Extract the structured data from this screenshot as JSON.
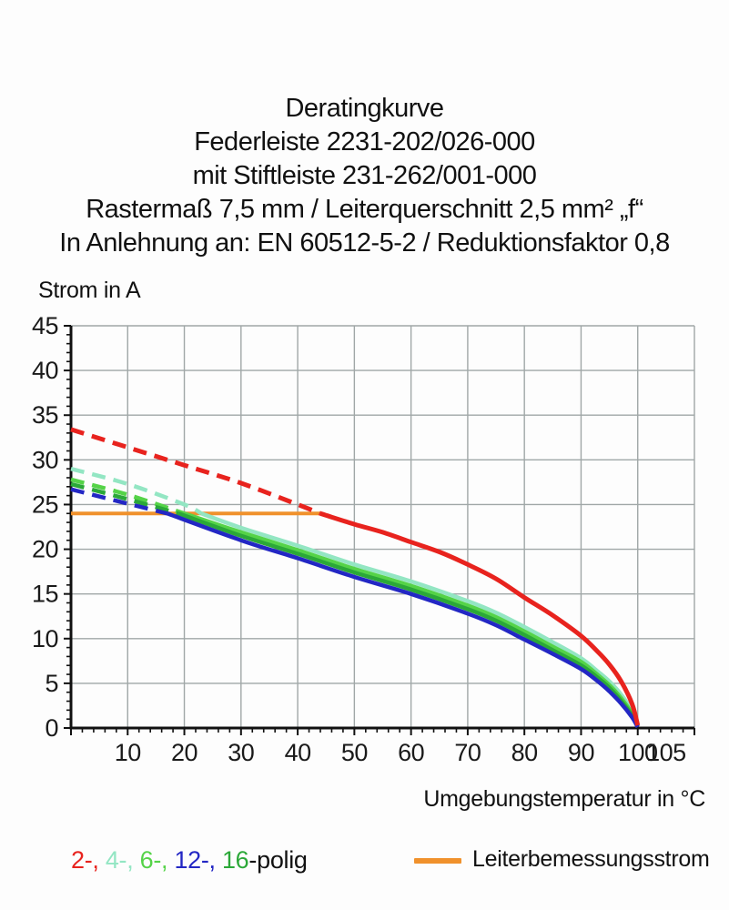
{
  "page": {
    "background": "#fdfdfd",
    "text_color": "#1a1a1a"
  },
  "title": {
    "lines": [
      "Deratingkurve",
      "Federleiste 2231-202/026-000",
      "mit Stiftleiste 231-262/001-000",
      "Rastermaß 7,5 mm / Leiterquerschnitt 2,5 mm² „f“",
      "In Anlehnung an: EN 60512-5-2 / Reduktionsfaktor 0,8"
    ]
  },
  "chart_data": {
    "type": "line",
    "title": "Deratingkurve",
    "xlabel": "Umgebungstemperatur in °C",
    "ylabel": "Strom in A",
    "xlim": [
      0,
      110
    ],
    "ylim": [
      0,
      45
    ],
    "grid": true,
    "grid_color": "#a0a7a7",
    "axis_color": "#111111",
    "x_gridlines": [
      10,
      20,
      30,
      40,
      50,
      60,
      70,
      80,
      90,
      100
    ],
    "x_minor_step": 2,
    "y_minor_step": 1,
    "x_tick_labels": [
      {
        "value": 10,
        "label": "10"
      },
      {
        "value": 20,
        "label": "20"
      },
      {
        "value": 30,
        "label": "30"
      },
      {
        "value": 40,
        "label": "40"
      },
      {
        "value": 50,
        "label": "50"
      },
      {
        "value": 60,
        "label": "60"
      },
      {
        "value": 70,
        "label": "70"
      },
      {
        "value": 80,
        "label": "80"
      },
      {
        "value": 90,
        "label": "90"
      },
      {
        "value": 100,
        "label": "100"
      },
      {
        "value": 105,
        "label": "105"
      }
    ],
    "y_tick_labels": [
      {
        "value": 0,
        "label": "0"
      },
      {
        "value": 5,
        "label": "5"
      },
      {
        "value": 10,
        "label": "10"
      },
      {
        "value": 15,
        "label": "15"
      },
      {
        "value": 20,
        "label": "20"
      },
      {
        "value": 25,
        "label": "25"
      },
      {
        "value": 30,
        "label": "30"
      },
      {
        "value": 35,
        "label": "35"
      },
      {
        "value": 40,
        "label": "40"
      },
      {
        "value": 45,
        "label": "45"
      }
    ],
    "y_gridline_step": 5,
    "series": [
      {
        "name": "4-polig",
        "color": "#93e6c3",
        "width": 4.5,
        "dash_until": 23,
        "points": [
          [
            0,
            29.0
          ],
          [
            10,
            27.3
          ],
          [
            20,
            25.0
          ],
          [
            23,
            24.0
          ],
          [
            30,
            22.4
          ],
          [
            40,
            20.4
          ],
          [
            50,
            18.3
          ],
          [
            60,
            16.4
          ],
          [
            70,
            14.2
          ],
          [
            75,
            12.9
          ],
          [
            80,
            11.3
          ],
          [
            85,
            9.6
          ],
          [
            90,
            7.8
          ],
          [
            93,
            6.3
          ],
          [
            95,
            5.2
          ],
          [
            97,
            3.8
          ],
          [
            99,
            1.9
          ],
          [
            100,
            0.3
          ]
        ]
      },
      {
        "name": "6-polig",
        "color": "#55d348",
        "width": 4.5,
        "dash_until": 20,
        "points": [
          [
            0,
            27.8
          ],
          [
            10,
            26.1
          ],
          [
            20,
            24.0
          ],
          [
            30,
            21.9
          ],
          [
            40,
            19.9
          ],
          [
            50,
            17.8
          ],
          [
            60,
            15.9
          ],
          [
            70,
            13.7
          ],
          [
            75,
            12.4
          ],
          [
            80,
            10.8
          ],
          [
            85,
            9.1
          ],
          [
            90,
            7.4
          ],
          [
            93,
            5.9
          ],
          [
            95,
            4.8
          ],
          [
            97,
            3.4
          ],
          [
            99,
            1.6
          ],
          [
            100,
            0.2
          ]
        ]
      },
      {
        "name": "16-polig",
        "color": "#2ba838",
        "width": 4.5,
        "dash_until": 19,
        "points": [
          [
            0,
            27.3
          ],
          [
            10,
            25.6
          ],
          [
            19,
            24.0
          ],
          [
            30,
            21.5
          ],
          [
            40,
            19.5
          ],
          [
            50,
            17.4
          ],
          [
            60,
            15.5
          ],
          [
            70,
            13.3
          ],
          [
            75,
            12.0
          ],
          [
            80,
            10.4
          ],
          [
            85,
            8.7
          ],
          [
            90,
            7.0
          ],
          [
            93,
            5.6
          ],
          [
            95,
            4.5
          ],
          [
            97,
            3.1
          ],
          [
            99,
            1.4
          ],
          [
            100,
            0.2
          ]
        ]
      },
      {
        "name": "12-polig",
        "color": "#2327c4",
        "width": 4.5,
        "dash_until": 17,
        "points": [
          [
            0,
            26.7
          ],
          [
            10,
            25.1
          ],
          [
            17,
            24.0
          ],
          [
            30,
            21.0
          ],
          [
            40,
            19.0
          ],
          [
            50,
            16.9
          ],
          [
            60,
            15.0
          ],
          [
            70,
            12.8
          ],
          [
            75,
            11.5
          ],
          [
            80,
            9.9
          ],
          [
            85,
            8.3
          ],
          [
            90,
            6.6
          ],
          [
            93,
            5.2
          ],
          [
            95,
            4.1
          ],
          [
            97,
            2.8
          ],
          [
            99,
            1.2
          ],
          [
            100,
            0.1
          ]
        ]
      },
      {
        "name": "2-polig",
        "color": "#e8231e",
        "width": 5,
        "dash_until": 44,
        "points": [
          [
            0,
            33.4
          ],
          [
            10,
            31.4
          ],
          [
            20,
            29.4
          ],
          [
            30,
            27.4
          ],
          [
            40,
            25.0
          ],
          [
            44,
            24.0
          ],
          [
            50,
            22.8
          ],
          [
            55,
            21.9
          ],
          [
            60,
            20.8
          ],
          [
            65,
            19.7
          ],
          [
            70,
            18.3
          ],
          [
            75,
            16.7
          ],
          [
            80,
            14.6
          ],
          [
            85,
            12.6
          ],
          [
            90,
            10.3
          ],
          [
            93,
            8.5
          ],
          [
            95,
            7.1
          ],
          [
            97,
            5.3
          ],
          [
            99,
            2.7
          ],
          [
            100,
            0.3
          ]
        ]
      }
    ],
    "reference_line": {
      "label": "Leiterbemessungsstrom",
      "color": "#f0912c",
      "y": 24,
      "x_from": 0,
      "x_to": 44
    },
    "legend_position": "bottom"
  },
  "legend": {
    "pole_entries": [
      {
        "label": "2-,",
        "name": "2-polig",
        "color": "#e8231e"
      },
      {
        "label": "4-,",
        "name": "4-polig",
        "color": "#93e6c3"
      },
      {
        "label": "6-,",
        "name": "6-polig",
        "color": "#55d348"
      },
      {
        "label": "12-,",
        "name": "12-polig",
        "color": "#2327c4"
      },
      {
        "label": "16",
        "name": "16-polig",
        "color": "#2ba838"
      }
    ],
    "suffix": "-polig",
    "reference": {
      "label": "Leiterbemessungsstrom",
      "color": "#f0912c"
    }
  }
}
